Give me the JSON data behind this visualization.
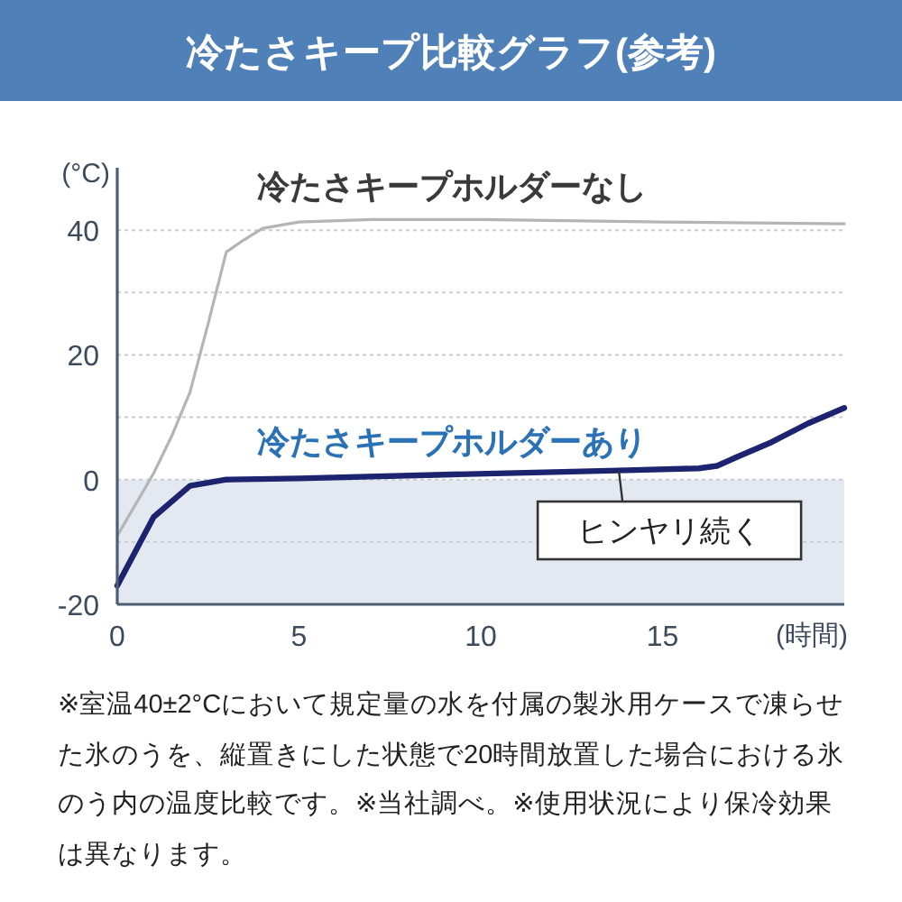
{
  "chart_data": {
    "type": "line",
    "title": "冷たさキープ比較グラフ(参考)",
    "ylabel": "(°C)",
    "xlabel": "(時間)",
    "xlim": [
      0,
      20
    ],
    "xticks": [
      0,
      5,
      10,
      15
    ],
    "ylim": [
      -20,
      50
    ],
    "yticks": [
      -20,
      {
        "value": -10,
        "label": null
      },
      0,
      {
        "value": 10,
        "label": null
      },
      20,
      {
        "value": 30,
        "label": null
      },
      40
    ],
    "grid": "y",
    "bands": [
      {
        "axis": "y",
        "from": -20,
        "to": 0,
        "color": "#e4e9f1"
      }
    ],
    "series": [
      {
        "name": "冷たさキープホルダーなし",
        "color": "#b4b4b4",
        "x": [
          0,
          0.5,
          1,
          1.5,
          2,
          2.5,
          3,
          3.5,
          4,
          5,
          7,
          10,
          15,
          20
        ],
        "values": [
          -9,
          -4,
          1,
          7,
          14,
          25,
          36.5,
          38.5,
          40.3,
          41.3,
          41.7,
          41.7,
          41.3,
          41
        ]
      },
      {
        "name": "冷たさキープホルダーあり",
        "color": "#1c2470",
        "x": [
          0,
          1,
          2,
          3,
          5,
          9,
          12,
          14,
          16,
          16.5,
          17,
          18,
          19,
          20
        ],
        "values": [
          -17,
          -6,
          -1,
          0,
          0.2,
          0.8,
          1.2,
          1.5,
          1.8,
          2.2,
          3.5,
          6,
          9,
          11.5
        ]
      }
    ],
    "annotations": [
      {
        "text": "ヒンヤリ続く",
        "x": 13.8,
        "y": 1.4
      },
      "※室温40±2°Cにおいて規定量の水を付属の製氷用ケースで凍らせた氷のうを、縦置きにした状態で20時間放置した場合における氷のう内の温度比較です。※当社調べ。※使用状況により保冷効果は異なります。"
    ]
  }
}
